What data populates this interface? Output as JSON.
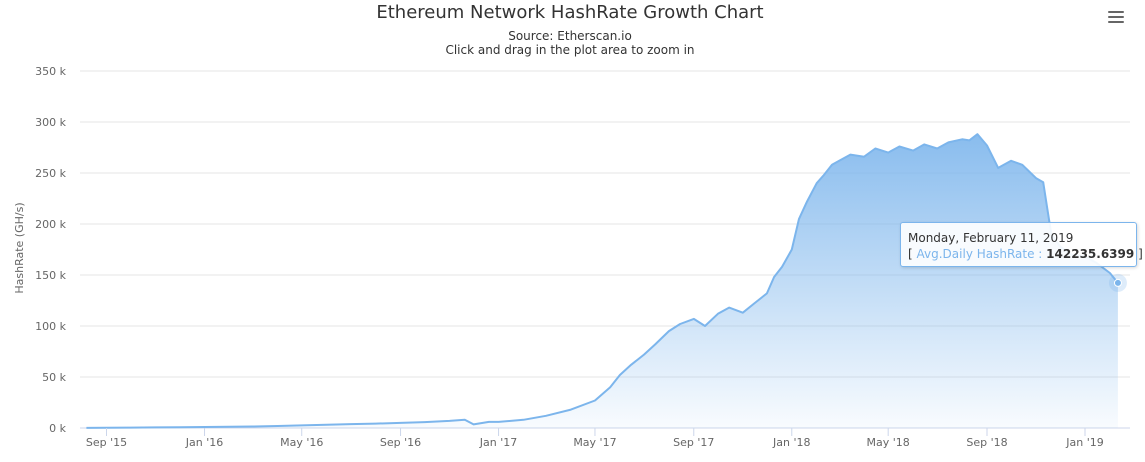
{
  "chart_data": {
    "type": "area",
    "title": "Ethereum Network HashRate Growth Chart",
    "subtitle": "Source: Etherscan.io",
    "subtitle2": "Click and drag in the plot area to zoom in",
    "ylabel": "HashRate (GH/s)",
    "xlabel": "",
    "ylim": [
      0,
      350000
    ],
    "y_ticks": [
      0,
      50000,
      100000,
      150000,
      200000,
      250000,
      300000,
      350000
    ],
    "y_tick_labels": [
      "0 k",
      "50 k",
      "100 k",
      "150 k",
      "200 k",
      "250 k",
      "300 k",
      "350 k"
    ],
    "x_range": [
      "2015-07-30",
      "2019-02-26"
    ],
    "x_ticks": [
      "2015-09-01",
      "2016-01-01",
      "2016-05-01",
      "2016-09-01",
      "2017-01-01",
      "2017-05-01",
      "2017-09-01",
      "2018-01-01",
      "2018-05-01",
      "2018-09-01",
      "2019-01-01"
    ],
    "x_tick_labels": [
      "Sep '15",
      "Jan '16",
      "May '16",
      "Sep '16",
      "Jan '17",
      "May '17",
      "Sep '17",
      "Jan '18",
      "May '18",
      "Sep '18",
      "Jan '19"
    ],
    "grid": true,
    "legend": "none",
    "series": [
      {
        "name": "Avg.Daily HashRate",
        "color": "#7cb5ec",
        "x": [
          "2015-08-07",
          "2015-09-01",
          "2015-10-01",
          "2015-11-01",
          "2015-12-01",
          "2016-01-01",
          "2016-02-01",
          "2016-03-01",
          "2016-04-01",
          "2016-05-01",
          "2016-06-01",
          "2016-07-01",
          "2016-08-01",
          "2016-09-01",
          "2016-10-01",
          "2016-11-01",
          "2016-11-20",
          "2016-12-01",
          "2016-12-20",
          "2017-01-01",
          "2017-02-01",
          "2017-03-01",
          "2017-04-01",
          "2017-05-01",
          "2017-05-20",
          "2017-06-01",
          "2017-06-15",
          "2017-07-01",
          "2017-07-15",
          "2017-08-01",
          "2017-08-15",
          "2017-09-01",
          "2017-09-15",
          "2017-10-01",
          "2017-10-15",
          "2017-11-01",
          "2017-11-15",
          "2017-12-01",
          "2017-12-10",
          "2017-12-20",
          "2018-01-01",
          "2018-01-10",
          "2018-01-20",
          "2018-02-01",
          "2018-02-10",
          "2018-02-20",
          "2018-03-01",
          "2018-03-15",
          "2018-04-01",
          "2018-04-15",
          "2018-05-01",
          "2018-05-15",
          "2018-06-01",
          "2018-06-15",
          "2018-07-01",
          "2018-07-15",
          "2018-08-01",
          "2018-08-10",
          "2018-08-20",
          "2018-09-01",
          "2018-09-15",
          "2018-10-01",
          "2018-10-15",
          "2018-11-01",
          "2018-11-10",
          "2018-11-15",
          "2018-11-20",
          "2018-12-01",
          "2018-12-15",
          "2019-01-01",
          "2019-01-15",
          "2019-02-01",
          "2019-02-11"
        ],
        "values": [
          100,
          200,
          400,
          600,
          800,
          1000,
          1200,
          1500,
          2000,
          2500,
          3200,
          3800,
          4300,
          5000,
          5800,
          7000,
          8000,
          3500,
          6000,
          6000,
          8000,
          12000,
          18000,
          27000,
          40000,
          52000,
          62000,
          72000,
          82000,
          95000,
          102000,
          107000,
          100000,
          112000,
          118000,
          113000,
          122000,
          132000,
          148000,
          158000,
          175000,
          205000,
          222000,
          240000,
          248000,
          258000,
          262000,
          268000,
          266000,
          274000,
          270000,
          276000,
          272000,
          278000,
          274000,
          280000,
          283000,
          282000,
          288000,
          277000,
          255000,
          262000,
          258000,
          245000,
          241000,
          215000,
          190000,
          178000,
          170000,
          168000,
          162000,
          152000,
          142235.6399
        ]
      }
    ],
    "tooltip": {
      "date": "Monday, February 11, 2019",
      "series_label": "Avg.Daily HashRate :",
      "value": "142235.6399",
      "open": "[",
      "close": "]"
    }
  }
}
